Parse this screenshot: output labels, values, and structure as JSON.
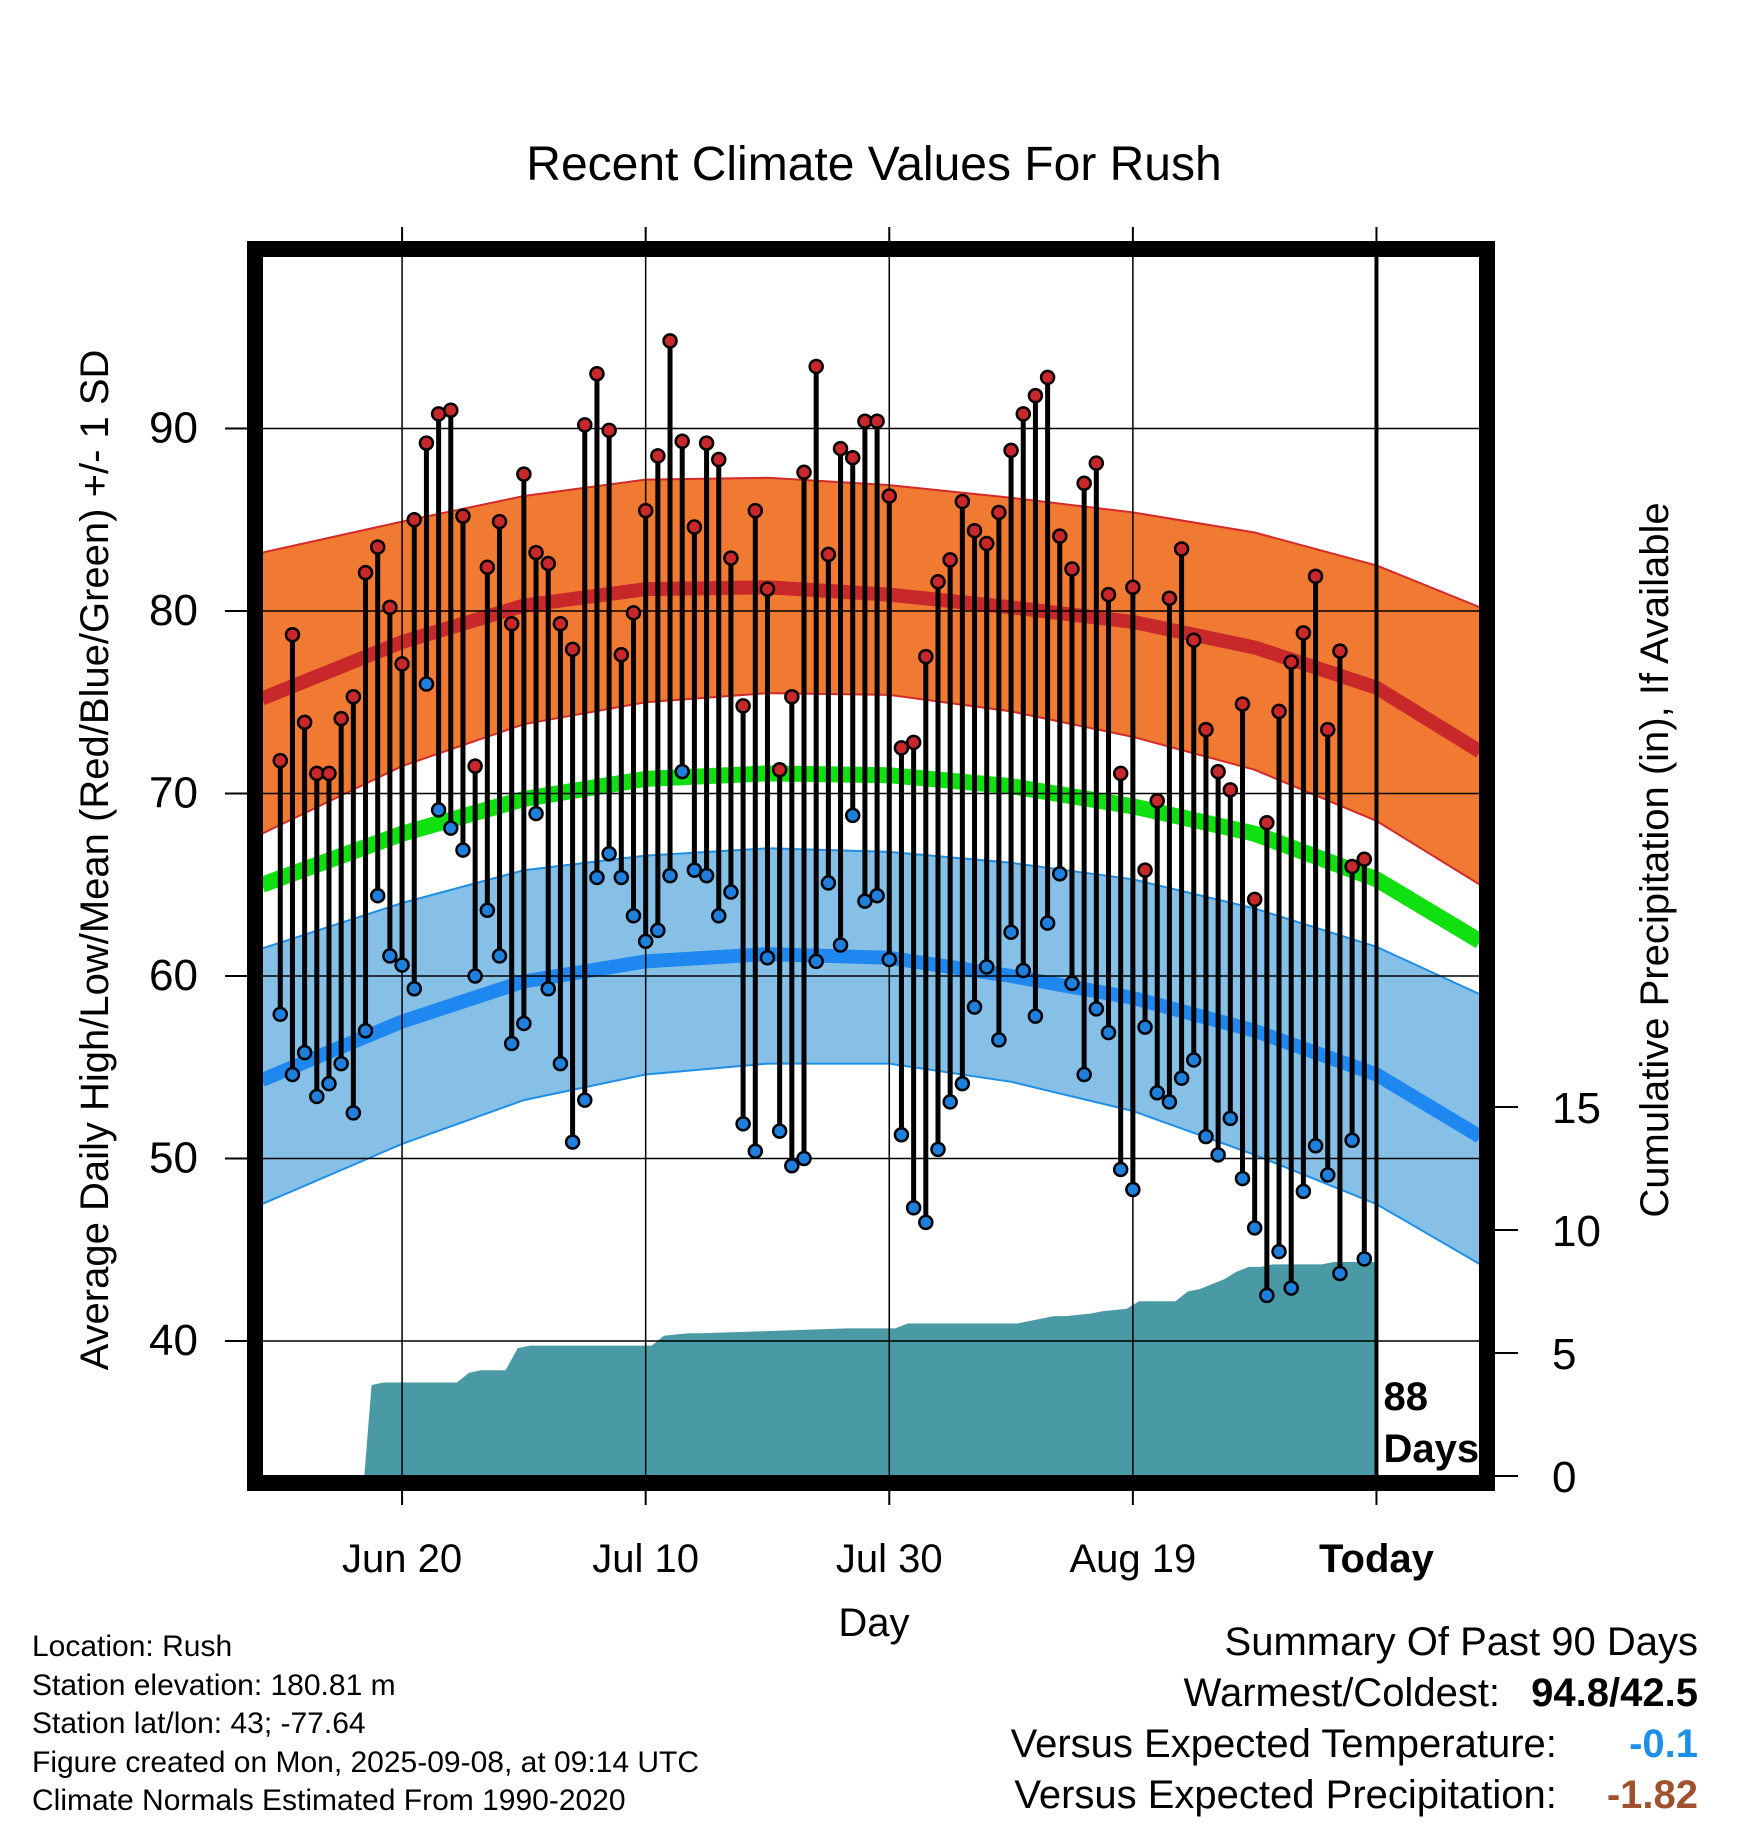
{
  "chart_data": {
    "type": "line",
    "title": "Recent Climate Values For Rush",
    "xlabel": "Day",
    "ylabel_left": "Average Daily High/Low/Mean (Red/Blue/Green) +/- 1 SD",
    "ylabel_right": "Cumulative Precipitation (in), If Available",
    "xlim": [
      -11.5,
      88.5
    ],
    "ylim_left": [
      32.5,
      100
    ],
    "ylim_right": [
      0,
      54
    ],
    "x_ticks": [
      {
        "x": 0,
        "label": "Jun 20"
      },
      {
        "x": 20,
        "label": "Jul 10"
      },
      {
        "x": 40,
        "label": "Jul 30"
      },
      {
        "x": 60,
        "label": "Aug 19"
      },
      {
        "x": 80,
        "label": "Today"
      }
    ],
    "y_ticks_left": [
      40,
      50,
      60,
      70,
      80,
      90
    ],
    "y_ticks_right": [
      0,
      5,
      10,
      15
    ],
    "grid": true,
    "today_x": 80,
    "today_annotation": [
      "88",
      "Days"
    ],
    "normals": {
      "x": [
        -11.5,
        0,
        10,
        20,
        30,
        40,
        50,
        60,
        70,
        80,
        88.5
      ],
      "high_upper": [
        83.2,
        84.9,
        86.3,
        87.2,
        87.3,
        86.9,
        86.2,
        85.4,
        84.3,
        82.5,
        80.2
      ],
      "high_mean": [
        75.2,
        78.3,
        80.3,
        81.2,
        81.3,
        80.9,
        80.2,
        79.4,
        78.0,
        75.8,
        72.3
      ],
      "high_lower": [
        67.8,
        71.5,
        73.8,
        75.0,
        75.5,
        75.4,
        74.5,
        73.1,
        71.3,
        68.5,
        65.0
      ],
      "mean": [
        65.0,
        67.8,
        69.7,
        70.8,
        71.1,
        71.0,
        70.4,
        69.3,
        67.8,
        65.3,
        61.9
      ],
      "low_upper": [
        61.5,
        64.0,
        65.8,
        66.6,
        67.0,
        66.8,
        66.2,
        65.3,
        63.7,
        61.6,
        59.0
      ],
      "low_mean": [
        54.3,
        57.5,
        59.7,
        60.8,
        61.2,
        61.0,
        60.0,
        58.8,
        57.0,
        54.6,
        51.2
      ],
      "low_lower": [
        47.5,
        50.8,
        53.2,
        54.6,
        55.2,
        55.2,
        54.2,
        52.6,
        50.2,
        47.5,
        44.2
      ]
    },
    "series": [
      {
        "name": "High",
        "color": "#c8282a",
        "x": [
          -10,
          -9,
          -8,
          -7,
          -6,
          -5,
          -4,
          -3,
          -2,
          -1,
          0,
          1,
          2,
          3,
          4,
          5,
          6,
          7,
          8,
          9,
          10,
          11,
          12,
          13,
          14,
          15,
          16,
          17,
          18,
          19,
          20,
          21,
          22,
          23,
          24,
          25,
          26,
          27,
          28,
          29,
          30,
          31,
          32,
          33,
          34,
          35,
          36,
          37,
          38,
          39,
          40,
          41,
          42,
          43,
          44,
          45,
          46,
          47,
          48,
          49,
          50,
          51,
          52,
          53,
          54,
          55,
          56,
          57,
          58,
          59,
          60,
          61,
          62,
          63,
          64,
          65,
          66,
          67,
          68,
          69,
          70,
          71,
          72,
          73,
          74,
          75,
          76,
          77,
          78,
          79
        ],
        "values": [
          71.8,
          78.7,
          73.9,
          71.1,
          71.1,
          74.1,
          75.3,
          82.1,
          83.5,
          80.2,
          77.1,
          85.0,
          89.2,
          90.8,
          91.0,
          85.2,
          71.5,
          82.4,
          84.9,
          79.3,
          87.5,
          83.2,
          82.6,
          79.3,
          77.9,
          90.2,
          93.0,
          89.9,
          77.6,
          79.9,
          85.5,
          88.5,
          94.8,
          89.3,
          84.6,
          89.2,
          88.3,
          82.9,
          74.8,
          85.5,
          81.2,
          71.3,
          75.3,
          87.6,
          93.4,
          83.1,
          88.9,
          88.4,
          90.4,
          90.4,
          86.3,
          72.5,
          72.8,
          77.5,
          81.6,
          82.8,
          86.0,
          84.4,
          83.7,
          85.4,
          88.8,
          90.8,
          91.8,
          92.8,
          84.1,
          82.3,
          87.0,
          88.1,
          80.9,
          71.1,
          81.3,
          65.8,
          69.6,
          80.7,
          83.4,
          78.4,
          73.5,
          71.2,
          70.2,
          74.9,
          64.2,
          68.4,
          74.5,
          77.2,
          78.8,
          81.9,
          73.5,
          77.8,
          66.0,
          66.4
        ]
      },
      {
        "name": "Low",
        "color": "#1e7fdc",
        "x": [
          -10,
          -9,
          -8,
          -7,
          -6,
          -5,
          -4,
          -3,
          -2,
          -1,
          0,
          1,
          2,
          3,
          4,
          5,
          6,
          7,
          8,
          9,
          10,
          11,
          12,
          13,
          14,
          15,
          16,
          17,
          18,
          19,
          20,
          21,
          22,
          23,
          24,
          25,
          26,
          27,
          28,
          29,
          30,
          31,
          32,
          33,
          34,
          35,
          36,
          37,
          38,
          39,
          40,
          41,
          42,
          43,
          44,
          45,
          46,
          47,
          48,
          49,
          50,
          51,
          52,
          53,
          54,
          55,
          56,
          57,
          58,
          59,
          60,
          61,
          62,
          63,
          64,
          65,
          66,
          67,
          68,
          69,
          70,
          71,
          72,
          73,
          74,
          75,
          76,
          77,
          78,
          79
        ],
        "values": [
          57.9,
          54.6,
          55.8,
          53.4,
          54.1,
          55.2,
          52.5,
          57.0,
          64.4,
          61.1,
          60.6,
          59.3,
          76.0,
          69.1,
          68.1,
          66.9,
          60.0,
          63.6,
          61.1,
          56.3,
          57.4,
          68.9,
          59.3,
          55.2,
          50.9,
          53.2,
          65.4,
          66.7,
          65.4,
          63.3,
          61.9,
          62.5,
          65.5,
          71.2,
          65.8,
          65.5,
          63.3,
          64.6,
          51.9,
          50.4,
          61.0,
          51.5,
          49.6,
          50.0,
          60.8,
          65.1,
          61.7,
          68.8,
          64.1,
          64.4,
          60.9,
          51.3,
          47.3,
          46.5,
          50.5,
          53.1,
          54.1,
          58.3,
          60.5,
          56.5,
          62.4,
          60.3,
          57.8,
          62.9,
          65.6,
          59.6,
          54.6,
          58.2,
          56.9,
          49.4,
          48.3,
          57.2,
          53.6,
          53.1,
          54.4,
          55.4,
          51.2,
          50.2,
          52.2,
          48.9,
          46.2,
          42.5,
          44.9,
          42.9,
          48.2,
          50.7,
          49.1,
          43.7,
          51.0,
          44.5
        ]
      }
    ],
    "precip_cumulative": {
      "x": [
        -11.5,
        -3.1,
        -2.5,
        -1.5,
        4.5,
        5.5,
        6.5,
        8.5,
        9.5,
        10.5,
        20.5,
        21.5,
        23.5,
        24.5,
        36.5,
        37.5,
        40.5,
        41.5,
        49.5,
        50.5,
        53.5,
        54.5,
        56.5,
        57.5,
        59.5,
        60.5,
        61.5,
        63.5,
        64.5,
        65.5,
        66.5,
        67.5,
        68.5,
        69.5,
        70.5,
        71.5,
        75.5,
        76.5,
        80
      ],
      "values": [
        0,
        0,
        3.7,
        3.8,
        3.8,
        4.2,
        4.3,
        4.3,
        5.2,
        5.3,
        5.3,
        5.7,
        5.8,
        5.8,
        6.0,
        6.0,
        6.0,
        6.2,
        6.2,
        6.2,
        6.5,
        6.5,
        6.6,
        6.7,
        6.8,
        7.1,
        7.1,
        7.1,
        7.5,
        7.6,
        7.8,
        8.0,
        8.3,
        8.5,
        8.5,
        8.6,
        8.6,
        8.7,
        8.7
      ],
      "color": "#4a9aa5"
    }
  },
  "footer": {
    "location": "Location: Rush",
    "elevation": "Station elevation: 180.81 m",
    "latlon": "Station lat/lon: 43; -77.64",
    "created": "Figure created on Mon, 2025-09-08, at 09:14 UTC",
    "normals": "Climate Normals Estimated From 1990-2020"
  },
  "summary": {
    "heading": "Summary Of Past 90 Days",
    "warmest_label": "Warmest/Coldest:",
    "warmest_value": "94.8/42.5",
    "temp_label": "Versus Expected Temperature:",
    "temp_value": "-0.1",
    "temp_color": "#1e8fe6",
    "precip_label": "Versus Expected Precipitation:",
    "precip_value": "-1.82",
    "precip_color": "#a0522d"
  }
}
